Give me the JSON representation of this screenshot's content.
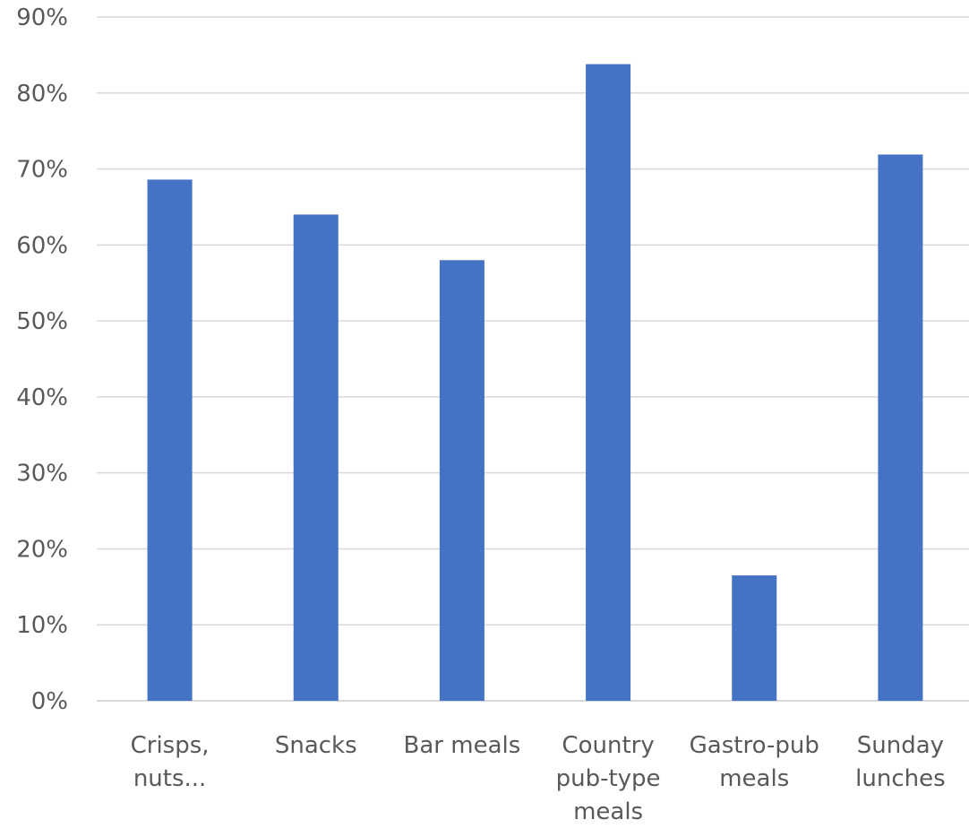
{
  "chart_data": {
    "type": "bar",
    "categories": [
      [
        "Crisps,",
        "nuts..."
      ],
      [
        "Snacks"
      ],
      [
        "Bar meals"
      ],
      [
        "Country",
        "pub-type",
        "meals"
      ],
      [
        "Gastro-pub",
        "meals"
      ],
      [
        "Sunday",
        "lunches"
      ]
    ],
    "values": [
      68.6,
      64.0,
      58.0,
      83.8,
      16.5,
      71.9
    ],
    "ylim": [
      0,
      90
    ],
    "yticks": [
      0,
      10,
      20,
      30,
      40,
      50,
      60,
      70,
      80,
      90
    ],
    "ytick_labels": [
      "0%",
      "10%",
      "20%",
      "30%",
      "40%",
      "50%",
      "60%",
      "70%",
      "80%",
      "90%"
    ],
    "grid": true,
    "bar_color": "#4472C4",
    "grid_color": "#D9D9D9",
    "text_color": "#595959"
  }
}
